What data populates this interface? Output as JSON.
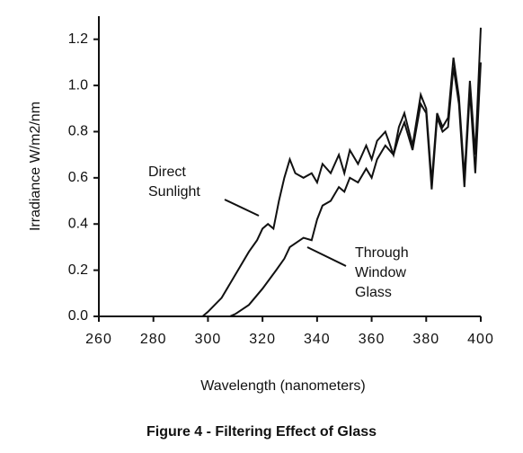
{
  "chart_data": {
    "type": "line",
    "title": "Figure 4 - Filtering Effect of Glass",
    "xlabel": "Wavelength (nanometers)",
    "ylabel": "Irradiance  W/m2/nm",
    "annotations": [
      [
        "Direct",
        "Sunlight"
      ],
      [
        "Through",
        "Window",
        "Glass"
      ]
    ],
    "xlim": [
      260,
      400
    ],
    "xticks": [
      260,
      280,
      300,
      320,
      340,
      360,
      380,
      400
    ],
    "ylim": [
      0,
      1.3
    ],
    "yticks": [
      {
        "value": 0,
        "label": "0.0"
      },
      {
        "value": 0.2,
        "label": "0.2"
      },
      {
        "value": 0.4,
        "label": "0.4"
      },
      {
        "value": 0.6,
        "label": "0.6"
      },
      {
        "value": 0.8,
        "label": "0.8"
      },
      {
        "value": 1,
        "label": "1.0"
      },
      {
        "value": 1.2,
        "label": "1.2"
      }
    ],
    "series": [
      {
        "color": "#111111",
        "x": [
          298,
          300,
          305,
          310,
          315,
          318,
          320,
          322,
          324,
          326,
          328,
          330,
          332,
          335,
          338,
          340,
          342,
          345,
          348,
          350,
          352,
          355,
          358,
          360,
          362,
          365,
          368,
          370,
          372,
          375,
          378,
          380,
          382,
          384,
          386,
          388,
          390,
          392,
          394,
          396,
          398,
          400
        ],
        "values": [
          0,
          0.02,
          0.08,
          0.18,
          0.28,
          0.33,
          0.38,
          0.4,
          0.38,
          0.5,
          0.6,
          0.68,
          0.62,
          0.6,
          0.62,
          0.58,
          0.66,
          0.62,
          0.7,
          0.62,
          0.72,
          0.66,
          0.74,
          0.68,
          0.76,
          0.8,
          0.7,
          0.82,
          0.88,
          0.74,
          0.96,
          0.9,
          0.58,
          0.88,
          0.82,
          0.86,
          1.12,
          0.95,
          0.6,
          1.02,
          0.7,
          1.25
        ]
      },
      {
        "color": "#111111",
        "x": [
          308,
          310,
          315,
          320,
          325,
          328,
          330,
          335,
          338,
          340,
          342,
          345,
          348,
          350,
          352,
          355,
          358,
          360,
          362,
          365,
          368,
          370,
          372,
          375,
          378,
          380,
          382,
          384,
          386,
          388,
          390,
          392,
          394,
          396,
          398,
          400
        ],
        "values": [
          0,
          0.01,
          0.05,
          0.12,
          0.2,
          0.25,
          0.3,
          0.34,
          0.33,
          0.42,
          0.48,
          0.5,
          0.56,
          0.54,
          0.6,
          0.58,
          0.64,
          0.6,
          0.68,
          0.74,
          0.7,
          0.78,
          0.84,
          0.72,
          0.92,
          0.88,
          0.55,
          0.86,
          0.8,
          0.82,
          1.08,
          0.92,
          0.56,
          0.98,
          0.62,
          1.1
        ]
      }
    ]
  }
}
